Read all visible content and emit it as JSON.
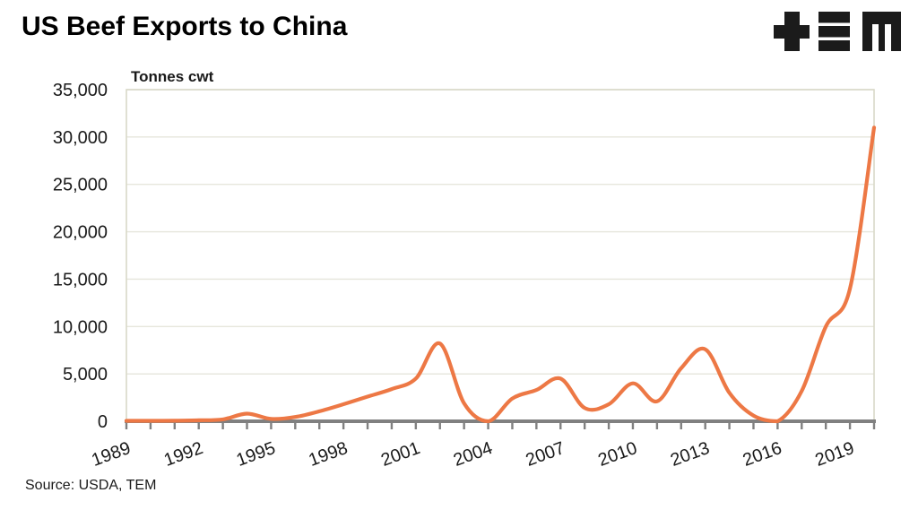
{
  "header": {
    "title": "US Beef Exports to China",
    "logo_alt": "TEM"
  },
  "chart_data": {
    "type": "line",
    "title": "US Beef Exports to China",
    "unit_label": "Tonnes cwt",
    "series_name": "US beef exports to China (tonnes cwt)",
    "x": [
      1989,
      1990,
      1991,
      1992,
      1993,
      1994,
      1995,
      1996,
      1997,
      1998,
      1999,
      2000,
      2001,
      2002,
      2003,
      2004,
      2005,
      2006,
      2007,
      2008,
      2009,
      2010,
      2011,
      2012,
      2013,
      2014,
      2015,
      2016,
      2017,
      2018,
      2019,
      2020
    ],
    "values": [
      50,
      50,
      60,
      100,
      200,
      800,
      250,
      450,
      1050,
      1800,
      2600,
      3400,
      4500,
      8200,
      1900,
      0,
      2400,
      3300,
      4500,
      1400,
      1800,
      4000,
      2100,
      5600,
      7600,
      3000,
      600,
      0,
      3200,
      10000,
      14000,
      31000
    ],
    "ylim": [
      0,
      35000
    ],
    "ytick_step": 5000,
    "ytick_labels": [
      "0",
      "5,000",
      "10,000",
      "15,000",
      "20,000",
      "25,000",
      "30,000",
      "35,000"
    ],
    "xtick_label_years": [
      1989,
      1992,
      1995,
      1998,
      2001,
      2004,
      2007,
      2010,
      2013,
      2016,
      2019
    ],
    "grid": "horizontal",
    "legend": "none",
    "line_color": "#ED7845",
    "axis_color": "#808080",
    "gridline_color": "#E6E6DC",
    "plot_border_color": "#D9D9C8",
    "label_color": "#1a1a1a"
  },
  "footer": {
    "source": "Source: USDA, TEM"
  }
}
